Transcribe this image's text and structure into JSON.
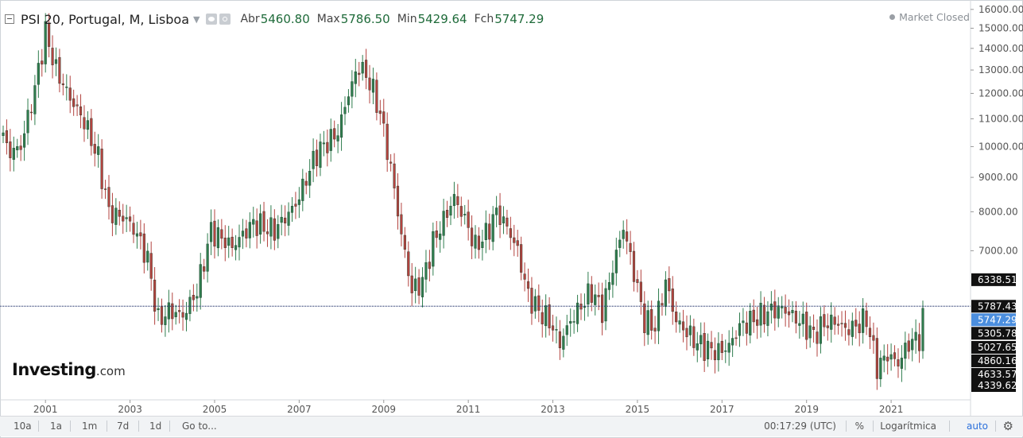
{
  "header": {
    "title": "PSI 20, Portugal, M, Lisboa",
    "ohlc": [
      {
        "label": "Abr",
        "value": "5460.80"
      },
      {
        "label": "Max",
        "value": "5786.50"
      },
      {
        "label": "Min",
        "value": "5429.64"
      },
      {
        "label": "Fch",
        "value": "5747.29"
      }
    ]
  },
  "market_status": "Market Closed",
  "logo": {
    "main": "Investing",
    "suffix": ".com"
  },
  "timeframes": [
    "10a",
    "1a",
    "1m",
    "7d",
    "1d",
    "Go to..."
  ],
  "bottom_right": {
    "time": "00:17:29 (UTC)",
    "percent": "%",
    "log": "Logarítmica",
    "auto": "auto"
  },
  "colors": {
    "up": "#2f7d4e",
    "down": "#b3433f",
    "line": "#2e3f74",
    "last_price_bg": "#4b8ede",
    "tag_bg": "#111111"
  },
  "chart_data": {
    "type": "candlestick",
    "title": "PSI 20, Portugal, M, Lisboa",
    "x_ticks": [
      "2001",
      "2003",
      "2005",
      "2007",
      "2009",
      "2011",
      "2013",
      "2015",
      "2017",
      "2019",
      "2021"
    ],
    "y_ticks": [
      "16000.00",
      "15000.00",
      "14000.00",
      "13000.00",
      "12000.00",
      "11000.00",
      "10000.00",
      "9000.00",
      "8000.00",
      "7000.00"
    ],
    "price_tags": [
      {
        "value": "6338.51",
        "style": "dark"
      },
      {
        "value": "5787.43",
        "style": "dark"
      },
      {
        "value": "5747.29",
        "style": "blue"
      },
      {
        "value": "5305.78",
        "style": "dark"
      },
      {
        "value": "5027.65",
        "style": "dark"
      },
      {
        "value": "4860.16",
        "style": "dark"
      },
      {
        "value": "4633.57",
        "style": "dark"
      },
      {
        "value": "4339.62",
        "style": "dark"
      }
    ],
    "horizontal_line": 5787.43,
    "last_close": 5747.29,
    "x_range": [
      "2000-01",
      "2021-10"
    ],
    "y_range": [
      4339.62,
      16300
    ],
    "scale": "log",
    "anchors": [
      [
        "2000-01",
        10300
      ],
      [
        "2000-03",
        9800
      ],
      [
        "2000-06",
        10000
      ],
      [
        "2000-10",
        12200
      ],
      [
        "2001-01",
        14800
      ],
      [
        "2001-04",
        13000
      ],
      [
        "2001-08",
        11800
      ],
      [
        "2001-12",
        10900
      ],
      [
        "2002-04",
        9600
      ],
      [
        "2002-07",
        8000
      ],
      [
        "2002-12",
        7800
      ],
      [
        "2003-03",
        7400
      ],
      [
        "2003-06",
        6800
      ],
      [
        "2003-09",
        5500
      ],
      [
        "2003-12",
        5700
      ],
      [
        "2004-04",
        5600
      ],
      [
        "2004-08",
        6100
      ],
      [
        "2004-12",
        7500
      ],
      [
        "2005-06",
        7100
      ],
      [
        "2005-12",
        7700
      ],
      [
        "2006-06",
        7500
      ],
      [
        "2006-12",
        8200
      ],
      [
        "2007-06",
        9800
      ],
      [
        "2007-12",
        10500
      ],
      [
        "2008-03",
        12000
      ],
      [
        "2008-06",
        13200
      ],
      [
        "2008-09",
        12500
      ],
      [
        "2008-12",
        11200
      ],
      [
        "2009-03",
        9300
      ],
      [
        "2009-06",
        7400
      ],
      [
        "2009-09",
        6100
      ],
      [
        "2009-12",
        6300
      ],
      [
        "2010-03",
        7200
      ],
      [
        "2010-09",
        8400
      ],
      [
        "2010-12",
        7800
      ],
      [
        "2011-03",
        7100
      ],
      [
        "2011-06",
        7400
      ],
      [
        "2011-09",
        8000
      ],
      [
        "2011-12",
        7600
      ],
      [
        "2012-03",
        7000
      ],
      [
        "2012-06",
        6000
      ],
      [
        "2012-09",
        5700
      ],
      [
        "2012-12",
        5500
      ],
      [
        "2013-03",
        5100
      ],
      [
        "2013-06",
        5500
      ],
      [
        "2013-09",
        5800
      ],
      [
        "2013-12",
        6100
      ],
      [
        "2014-03",
        5700
      ],
      [
        "2014-06",
        6600
      ],
      [
        "2014-09",
        7600
      ],
      [
        "2014-12",
        6500
      ],
      [
        "2015-03",
        5500
      ],
      [
        "2015-06",
        5400
      ],
      [
        "2015-09",
        6300
      ],
      [
        "2015-12",
        5500
      ],
      [
        "2016-03",
        5300
      ],
      [
        "2016-06",
        5100
      ],
      [
        "2016-09",
        5000
      ],
      [
        "2016-12",
        4950
      ],
      [
        "2017-03",
        5050
      ],
      [
        "2017-06",
        5400
      ],
      [
        "2017-09",
        5500
      ],
      [
        "2017-12",
        5600
      ],
      [
        "2018-03",
        5700
      ],
      [
        "2018-06",
        5750
      ],
      [
        "2018-09",
        5600
      ],
      [
        "2018-12",
        5450
      ],
      [
        "2019-03",
        5250
      ],
      [
        "2019-06",
        5450
      ],
      [
        "2019-09",
        5500
      ],
      [
        "2019-12",
        5350
      ],
      [
        "2020-03",
        5400
      ],
      [
        "2020-06",
        5550
      ],
      [
        "2020-09",
        4700
      ],
      [
        "2020-12",
        4900
      ],
      [
        "2021-03",
        4760
      ],
      [
        "2021-06",
        5100
      ],
      [
        "2021-09",
        5200
      ],
      [
        "2021-10",
        5747.29
      ]
    ]
  }
}
